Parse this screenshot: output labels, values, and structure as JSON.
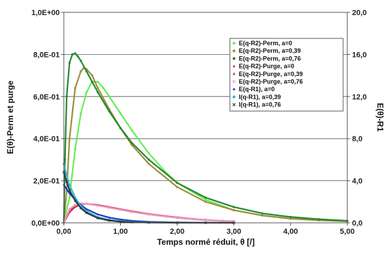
{
  "chart_data": {
    "type": "scatter",
    "title": "",
    "xlabel": "Temps normé réduit, θ [/]",
    "ylabel": "E(θ)-Perm et purge",
    "y2label": "E(θ)-R1",
    "xlim": [
      0,
      5
    ],
    "ylim": [
      0,
      1
    ],
    "y2lim": [
      0,
      20
    ],
    "x_ticks": [
      "0,00",
      "1,00",
      "2,00",
      "3,00",
      "4,00",
      "5,00"
    ],
    "y_ticks": [
      "0,0E+00",
      "2,0E-01",
      "4,0E-01",
      "6,0E-01",
      "8,0E-01",
      "1,0E+00"
    ],
    "y2_ticks": [
      "0,0",
      "4,0",
      "8,0",
      "12,0",
      "16,0",
      "20,0"
    ],
    "grid": "horizontal",
    "legend_position": "top-right",
    "series": [
      {
        "name": "E(q-R2)-Perm, a=0",
        "color": "#66ee55",
        "axis": "left",
        "marker": "dot",
        "x": [
          0,
          0.1,
          0.2,
          0.3,
          0.4,
          0.5,
          0.6,
          0.7,
          0.8,
          1.0,
          1.2,
          1.5,
          1.8,
          2.0,
          2.5,
          3.0,
          3.5,
          4.0,
          4.5,
          5.0
        ],
        "values": [
          0,
          0.12,
          0.35,
          0.52,
          0.62,
          0.67,
          0.67,
          0.64,
          0.6,
          0.52,
          0.44,
          0.33,
          0.24,
          0.19,
          0.11,
          0.06,
          0.035,
          0.02,
          0.012,
          0.008
        ]
      },
      {
        "name": "E(q-R2)-Perm, a=0,39",
        "color": "#a08c3c",
        "axis": "left",
        "marker": "dot",
        "x": [
          0,
          0.05,
          0.1,
          0.2,
          0.3,
          0.35,
          0.4,
          0.5,
          0.6,
          0.8,
          1.0,
          1.2,
          1.5,
          2.0,
          2.5,
          3.0,
          3.5,
          4.0,
          4.5,
          5.0
        ],
        "values": [
          0,
          0.15,
          0.4,
          0.64,
          0.72,
          0.735,
          0.73,
          0.7,
          0.64,
          0.54,
          0.45,
          0.37,
          0.28,
          0.17,
          0.1,
          0.06,
          0.035,
          0.02,
          0.012,
          0.007
        ]
      },
      {
        "name": "E(q-R2)-Perm, a=0,76",
        "color": "#228833",
        "axis": "left",
        "marker": "dot",
        "x": [
          0,
          0.02,
          0.05,
          0.1,
          0.15,
          0.2,
          0.25,
          0.3,
          0.4,
          0.5,
          0.6,
          0.8,
          1.0,
          1.2,
          1.5,
          2.0,
          2.5,
          3.0,
          3.5,
          4.0,
          4.5,
          5.0
        ],
        "values": [
          0,
          0.3,
          0.6,
          0.76,
          0.8,
          0.805,
          0.79,
          0.77,
          0.72,
          0.67,
          0.62,
          0.53,
          0.45,
          0.38,
          0.3,
          0.19,
          0.12,
          0.075,
          0.045,
          0.028,
          0.017,
          0.01
        ]
      },
      {
        "name": "E(q-R2)-Purge, a=0",
        "color": "#dd2288",
        "axis": "left",
        "marker": "triangle",
        "x": [
          0,
          0.1,
          0.2,
          0.3,
          0.4,
          0.6,
          0.8,
          1.0,
          1.2,
          1.5,
          1.8,
          2.0,
          2.3,
          2.5,
          2.8,
          3.0
        ],
        "values": [
          0,
          0.05,
          0.075,
          0.088,
          0.09,
          0.085,
          0.075,
          0.065,
          0.055,
          0.042,
          0.032,
          0.026,
          0.018,
          0.014,
          0.009,
          0.007
        ]
      },
      {
        "name": "E(q-R2)-Purge, a=0,39",
        "color": "#aa5522",
        "axis": "left",
        "marker": "triangle",
        "x": [
          0,
          0.1,
          0.2,
          0.3,
          0.4,
          0.6,
          0.8,
          1.0,
          1.2,
          1.5,
          1.8,
          2.0,
          2.3,
          2.5,
          2.8,
          3.0
        ],
        "values": [
          0,
          0.06,
          0.08,
          0.09,
          0.09,
          0.083,
          0.073,
          0.063,
          0.053,
          0.04,
          0.03,
          0.024,
          0.017,
          0.013,
          0.009,
          0.007
        ]
      },
      {
        "name": "E(q-R2)-Purge, a=0,76",
        "color": "#ee99bb",
        "axis": "left",
        "marker": "cross",
        "x": [
          0,
          0.1,
          0.2,
          0.3,
          0.4,
          0.6,
          0.8,
          1.0,
          1.2,
          1.5,
          1.8,
          2.0,
          2.3,
          2.5,
          2.8,
          3.0
        ],
        "values": [
          0,
          0.065,
          0.085,
          0.092,
          0.09,
          0.082,
          0.072,
          0.062,
          0.052,
          0.04,
          0.03,
          0.024,
          0.017,
          0.013,
          0.009,
          0.007
        ]
      },
      {
        "name": "E(q-R1), a=0",
        "color": "#2233cc",
        "axis": "right",
        "marker": "diamond",
        "x": [
          0,
          0.05,
          0.1,
          0.2,
          0.3,
          0.4,
          0.6,
          0.8,
          1.0,
          1.2,
          1.5,
          2.0,
          2.5,
          3.0
        ],
        "values": [
          3.6,
          3.2,
          2.8,
          2.2,
          1.7,
          1.3,
          0.8,
          0.5,
          0.32,
          0.2,
          0.1,
          0.04,
          0.015,
          0.005
        ]
      },
      {
        "name": "I(q-R1), a=0,39",
        "color": "#22bbdd",
        "axis": "right",
        "marker": "dot",
        "x": [
          0,
          0.05,
          0.1,
          0.2,
          0.3,
          0.4,
          0.6,
          0.8,
          1.0,
          1.2,
          1.5,
          2.0,
          2.5,
          3.0
        ],
        "values": [
          5.6,
          4.5,
          3.6,
          2.4,
          1.6,
          1.1,
          0.55,
          0.3,
          0.17,
          0.1,
          0.05,
          0.02,
          0.008,
          0.003
        ]
      },
      {
        "name": "I(q-R1), a=0,76",
        "color": "#333333",
        "axis": "right",
        "marker": "cross",
        "x": [
          0,
          0.05,
          0.1,
          0.2,
          0.3,
          0.4,
          0.6,
          0.8,
          1.0,
          1.2,
          1.5,
          2.0,
          2.5,
          3.0
        ],
        "values": [
          4.8,
          3.9,
          3.1,
          2.1,
          1.4,
          0.95,
          0.45,
          0.22,
          0.11,
          0.06,
          0.025,
          0.008,
          0.003,
          0.001
        ]
      }
    ]
  }
}
